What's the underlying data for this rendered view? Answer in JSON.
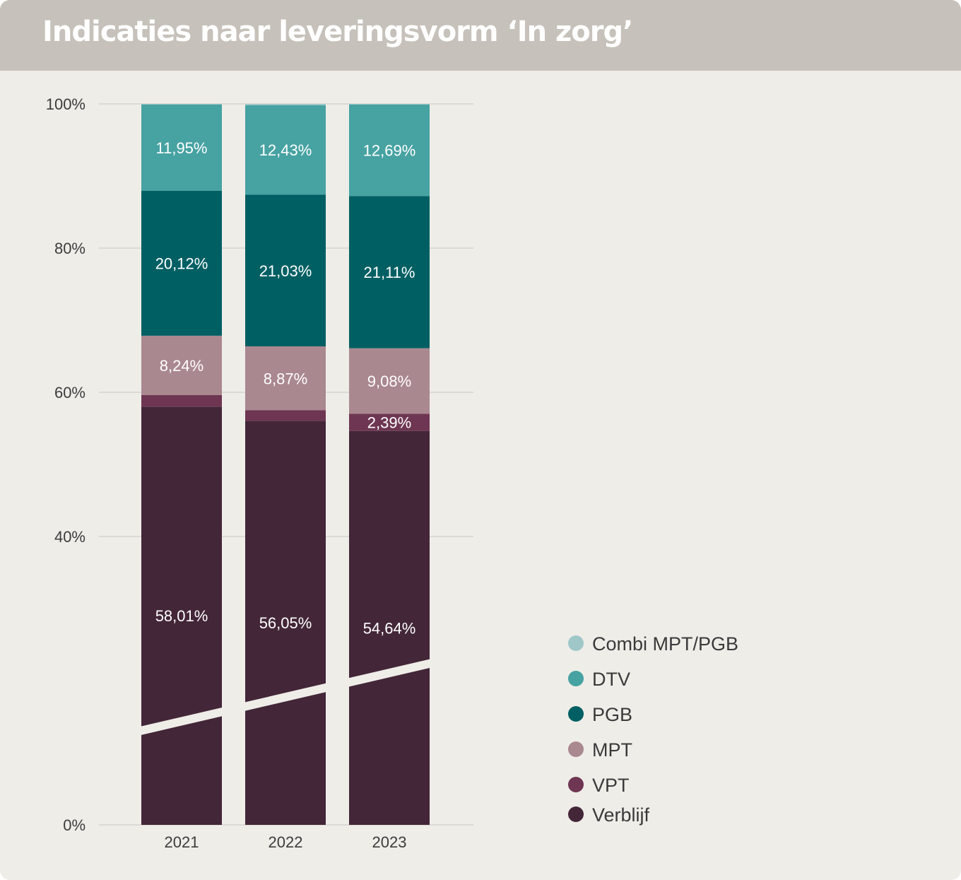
{
  "title": "Indicaties naar leveringsvorm ‘In zorg’",
  "chart_data": {
    "type": "bar",
    "stacked": true,
    "categories": [
      "2021",
      "2022",
      "2023"
    ],
    "ylim": [
      0,
      100
    ],
    "yticks": [
      "0%",
      "40%",
      "60%",
      "80%",
      "100%"
    ],
    "ytick_values": [
      0,
      40,
      60,
      80,
      100
    ],
    "grid": true,
    "legend_position": "right",
    "axis_break": true,
    "series": [
      {
        "name": "Verblijf",
        "color": "#432638",
        "values": [
          58.01,
          56.05,
          54.64
        ],
        "labels": [
          "58,01%",
          "56,05%",
          "54,64%"
        ]
      },
      {
        "name": "VPT",
        "color": "#6e3652",
        "values": [
          1.6,
          1.45,
          2.39
        ],
        "labels": [
          "",
          "",
          "2,39%"
        ]
      },
      {
        "name": "MPT",
        "color": "#aa8890",
        "values": [
          8.24,
          8.87,
          9.08
        ],
        "labels": [
          "8,24%",
          "8,87%",
          "9,08%"
        ]
      },
      {
        "name": "PGB",
        "color": "#005f63",
        "values": [
          20.12,
          21.03,
          21.11
        ],
        "labels": [
          "20,12%",
          "21,03%",
          "21,11%"
        ]
      },
      {
        "name": "DTV",
        "color": "#47a2a2",
        "values": [
          11.95,
          12.43,
          12.69
        ],
        "labels": [
          "11,95%",
          "12,43%",
          "12,69%"
        ]
      },
      {
        "name": "Combi MPT/PGB",
        "color": "#9fc7c8",
        "values": [
          0.08,
          0.17,
          0.09
        ],
        "labels": [
          "",
          "",
          ""
        ]
      }
    ],
    "legend_order": [
      "Combi MPT/PGB",
      "DTV",
      "PGB",
      "MPT",
      "VPT",
      "Verblijf"
    ]
  }
}
